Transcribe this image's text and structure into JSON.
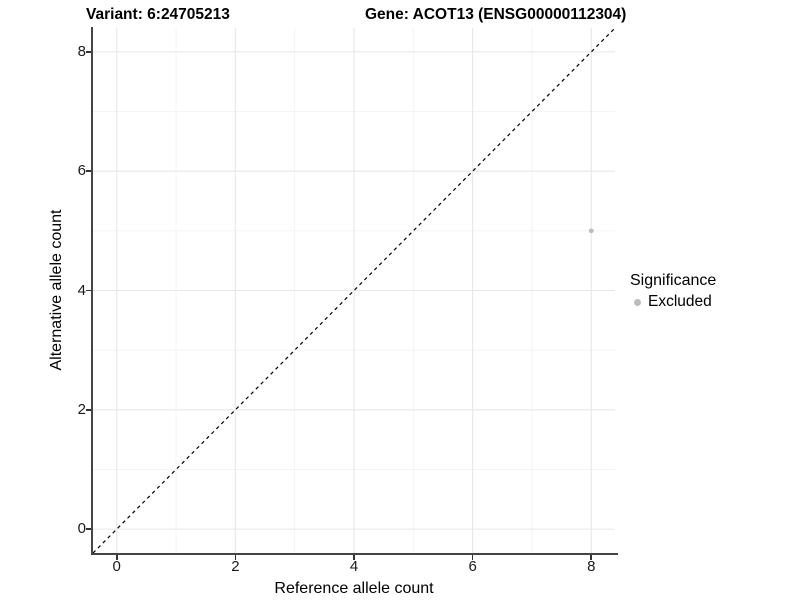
{
  "titles": {
    "variant": "Variant: 6:24705213",
    "gene": "Gene: ACOT13 (ENSG00000112304)"
  },
  "axes": {
    "x_label": "Reference allele count",
    "y_label": "Alternative allele count"
  },
  "legend": {
    "title": "Significance",
    "entries": [
      {
        "label": "Excluded",
        "color": "#bcbcbc"
      }
    ]
  },
  "colors": {
    "background": "#ffffff",
    "grid_major": "#e7e7e7",
    "grid_minor": "#f4f4f4",
    "axis_line": "#454545",
    "tick_text": "#1a1a1a",
    "point": "#bcbcbc",
    "reference_line": "#000000"
  },
  "chart_data": {
    "type": "scatter",
    "title": "Variant: 6:24705213    Gene: ACOT13 (ENSG00000112304)",
    "xlabel": "Reference allele count",
    "ylabel": "Alternative allele count",
    "xlim": [
      -0.4,
      8.4
    ],
    "ylim": [
      -0.4,
      8.4
    ],
    "x_major_ticks": [
      0,
      2,
      4,
      6,
      8
    ],
    "y_major_ticks": [
      0,
      2,
      4,
      6,
      8
    ],
    "x_minor_ticks": [
      1,
      3,
      5,
      7
    ],
    "y_minor_ticks": [
      1,
      3,
      5,
      7
    ],
    "grid": true,
    "legend_position": "right",
    "series": [
      {
        "name": "Excluded",
        "color": "#bcbcbc",
        "points": [
          {
            "x": 8,
            "y": 5
          }
        ]
      }
    ],
    "reference_line": {
      "equation": "y=x",
      "style": "dashed",
      "color": "#000000"
    }
  }
}
